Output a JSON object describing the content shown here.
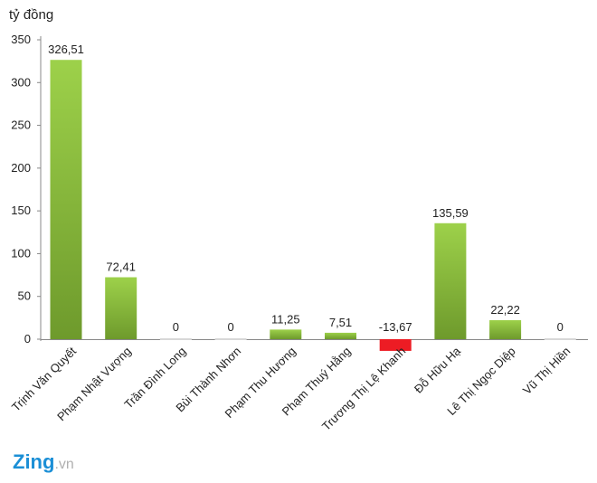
{
  "chart_data": {
    "type": "bar",
    "ylabel": "tỷ đồng",
    "ylim": [
      -15,
      350
    ],
    "yticks": [
      0,
      50,
      100,
      150,
      200,
      250,
      300,
      350
    ],
    "grid": false,
    "categories": [
      "Trịnh Văn Quyết",
      "Phạm Nhật Vượng",
      "Trần Đình Long",
      "Bùi Thành Nhơn",
      "Phạm Thu Hương",
      "Phạm Thuý Hằng",
      "Trương Thị Lệ Khanh",
      "Đỗ Hữu Hạ",
      "Lê Thị Ngọc Diệp",
      "Vũ Thị Hiền"
    ],
    "values": [
      326.51,
      72.41,
      0,
      0,
      11.25,
      7.51,
      -13.67,
      135.59,
      22.22,
      0
    ],
    "value_labels": [
      "326,51",
      "72,41",
      "0",
      "0",
      "11,25",
      "7,51",
      "-13,67",
      "135,59",
      "22,22",
      "0"
    ],
    "colors": {
      "positive": "#8dc63f",
      "negative": "#ed1c24"
    }
  },
  "logo": {
    "brand": "Zing",
    "suffix": ".vn"
  }
}
